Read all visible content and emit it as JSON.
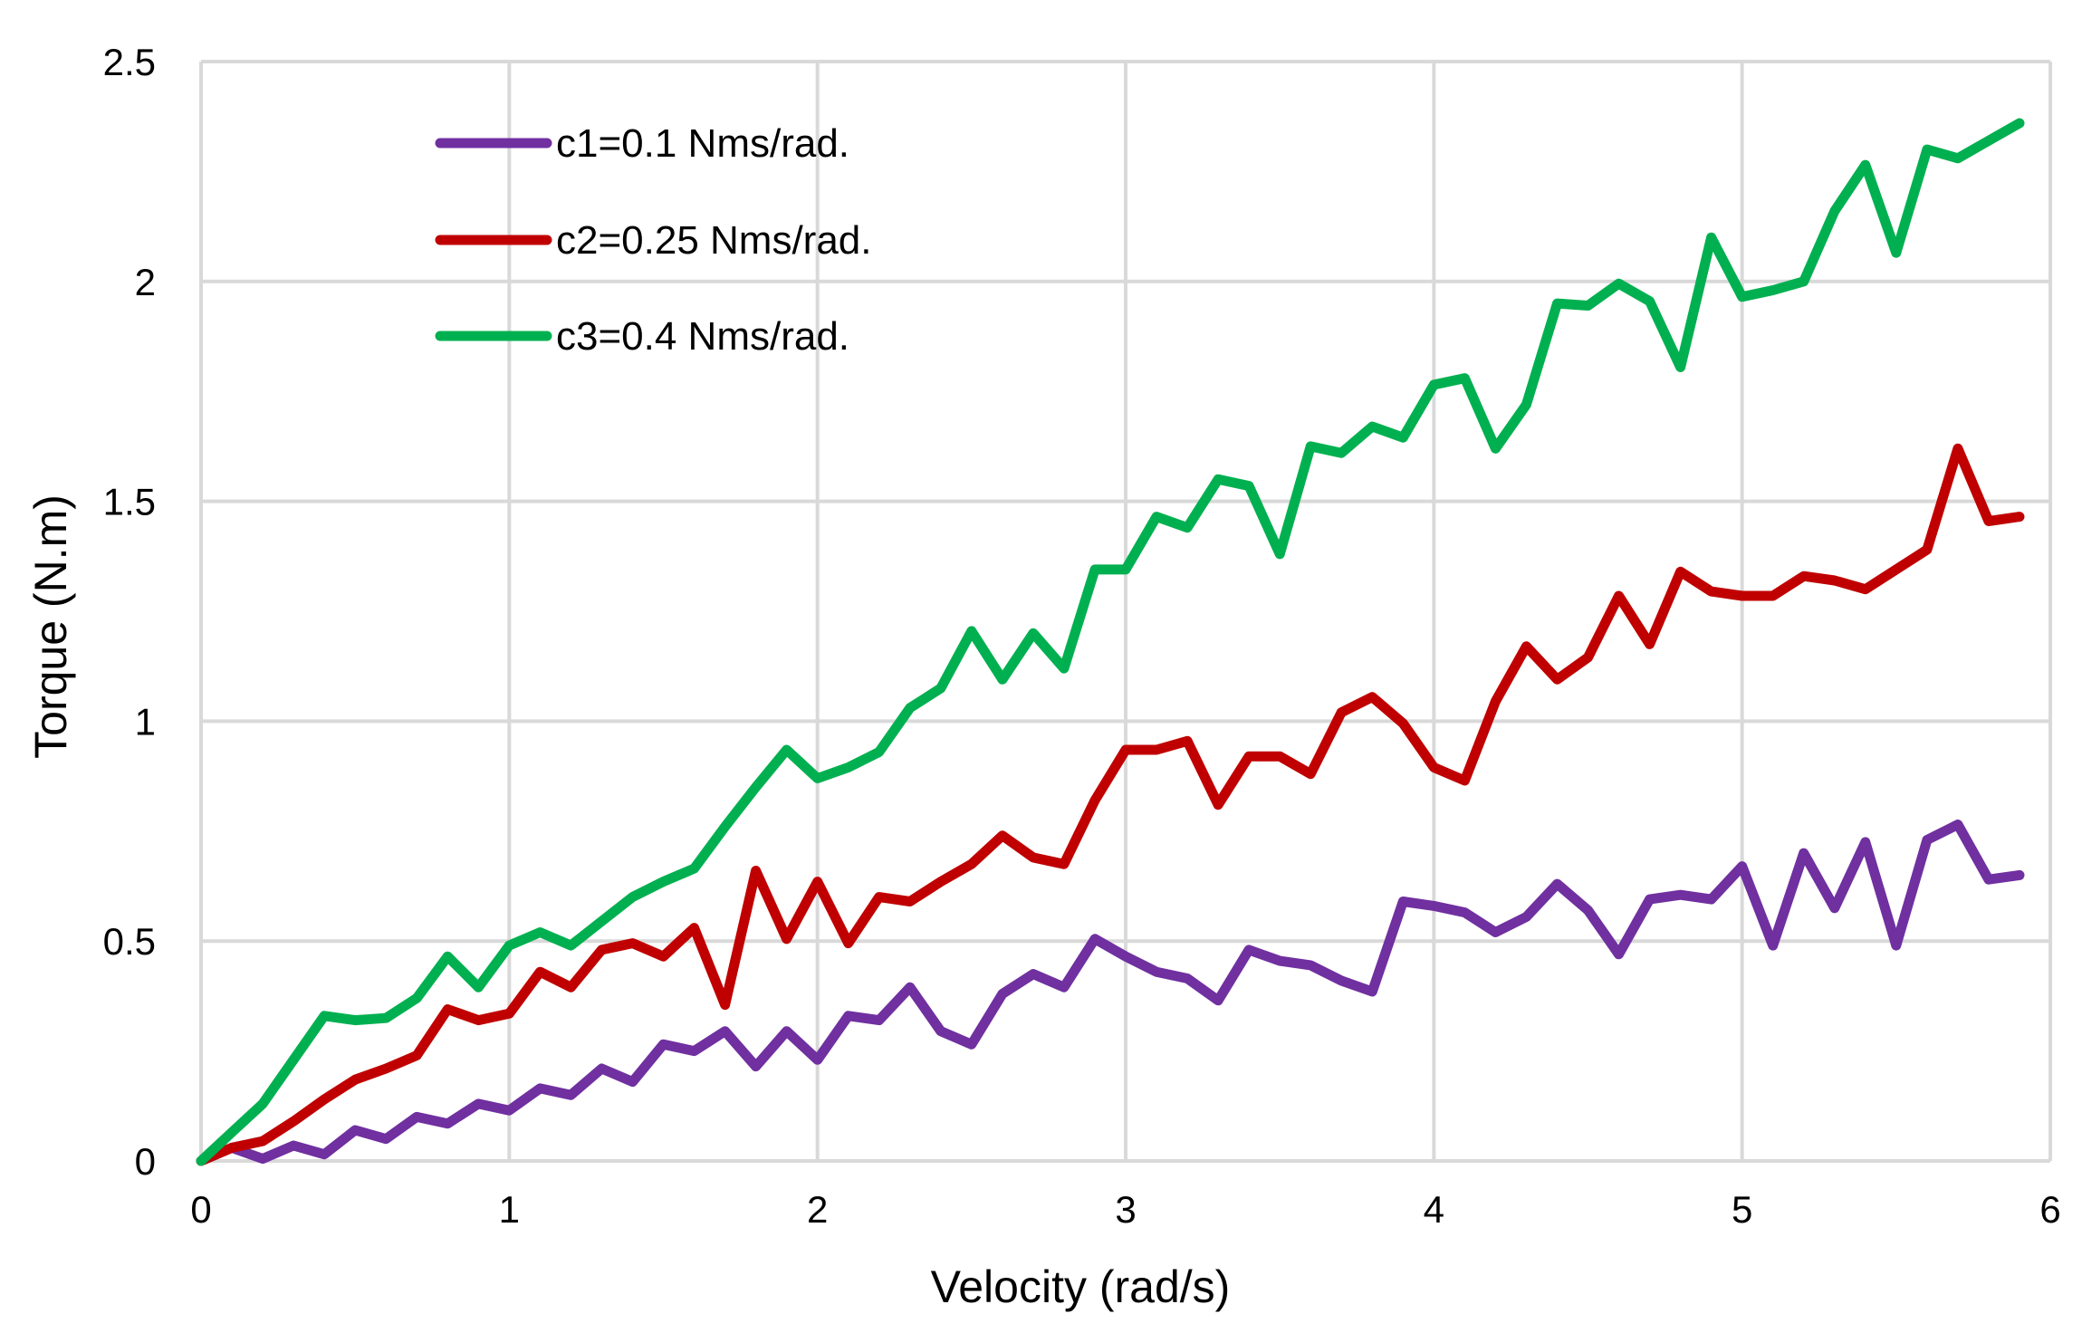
{
  "chart_data": {
    "type": "line",
    "title": "",
    "xlabel": "Velocity (rad/s)",
    "ylabel": "Torque (N.m)",
    "xlim": [
      0,
      6
    ],
    "ylim": [
      0,
      2.5
    ],
    "xticks": [
      "0",
      "1",
      "2",
      "3",
      "4",
      "5",
      "6"
    ],
    "yticks": [
      "0",
      "0.5",
      "1",
      "1.5",
      "2",
      "2.5"
    ],
    "grid": true,
    "legend_position": "top-left",
    "x": [
      0,
      0.1,
      0.2,
      0.3,
      0.4,
      0.5,
      0.6,
      0.7,
      0.8,
      0.9,
      1.0,
      1.1,
      1.2,
      1.3,
      1.4,
      1.5,
      1.6,
      1.7,
      1.8,
      1.9,
      2.0,
      2.1,
      2.2,
      2.3,
      2.4,
      2.5,
      2.6,
      2.7,
      2.8,
      2.9,
      3.0,
      3.1,
      3.2,
      3.3,
      3.4,
      3.5,
      3.6,
      3.7,
      3.8,
      3.9,
      4.0,
      4.1,
      4.2,
      4.3,
      4.4,
      4.5,
      4.6,
      4.7,
      4.8,
      4.9,
      5.0,
      5.1,
      5.2,
      5.3,
      5.4,
      5.5,
      5.6,
      5.7,
      5.8,
      5.9
    ],
    "series": [
      {
        "name": "c1=0.1 Nms/rad.",
        "color": "#7030a0",
        "values": [
          0,
          0.03,
          0.005,
          0.035,
          0.015,
          0.07,
          0.05,
          0.1,
          0.085,
          0.13,
          0.115,
          0.165,
          0.15,
          0.21,
          0.18,
          0.265,
          0.25,
          0.295,
          0.215,
          0.295,
          0.23,
          0.33,
          0.32,
          0.395,
          0.295,
          0.265,
          0.38,
          0.425,
          0.395,
          0.505,
          0.465,
          0.43,
          0.415,
          0.365,
          0.48,
          0.455,
          0.445,
          0.41,
          0.385,
          0.59,
          0.58,
          0.565,
          0.52,
          0.555,
          0.63,
          0.57,
          0.47,
          0.595,
          0.605,
          0.595,
          0.67,
          0.49,
          0.7,
          0.575,
          0.725,
          0.49,
          0.73,
          0.765,
          0.64,
          0.65
        ]
      },
      {
        "name": "c2=0.25 Nms/rad.",
        "color": "#c00000",
        "values": [
          0,
          0.03,
          0.045,
          0.09,
          0.14,
          0.185,
          0.21,
          0.24,
          0.345,
          0.32,
          0.335,
          0.43,
          0.395,
          0.48,
          0.495,
          0.465,
          0.53,
          0.355,
          0.66,
          0.505,
          0.635,
          0.495,
          0.6,
          0.59,
          0.635,
          0.675,
          0.74,
          0.69,
          0.675,
          0.82,
          0.935,
          0.935,
          0.955,
          0.81,
          0.92,
          0.92,
          0.88,
          1.02,
          1.055,
          0.995,
          0.895,
          0.865,
          1.045,
          1.17,
          1.095,
          1.145,
          1.285,
          1.175,
          1.34,
          1.295,
          1.285,
          1.285,
          1.33,
          1.32,
          1.3,
          1.345,
          1.39,
          1.62,
          1.455,
          1.465
        ]
      },
      {
        "name": "c3=0.4 Nms/rad.",
        "color": "#00b050",
        "values": [
          0,
          0.065,
          0.13,
          0.23,
          0.33,
          0.32,
          0.325,
          0.37,
          0.465,
          0.395,
          0.49,
          0.52,
          0.49,
          0.545,
          0.6,
          0.635,
          0.665,
          0.76,
          0.85,
          0.935,
          0.87,
          0.895,
          0.93,
          1.03,
          1.075,
          1.205,
          1.095,
          1.2,
          1.12,
          1.345,
          1.345,
          1.465,
          1.44,
          1.55,
          1.535,
          1.38,
          1.625,
          1.61,
          1.67,
          1.645,
          1.765,
          1.78,
          1.62,
          1.72,
          1.95,
          1.945,
          1.995,
          1.955,
          1.805,
          2.1,
          1.965,
          1.98,
          2.0,
          2.16,
          2.265,
          2.065,
          2.3,
          2.28,
          2.32,
          2.36
        ]
      }
    ]
  }
}
